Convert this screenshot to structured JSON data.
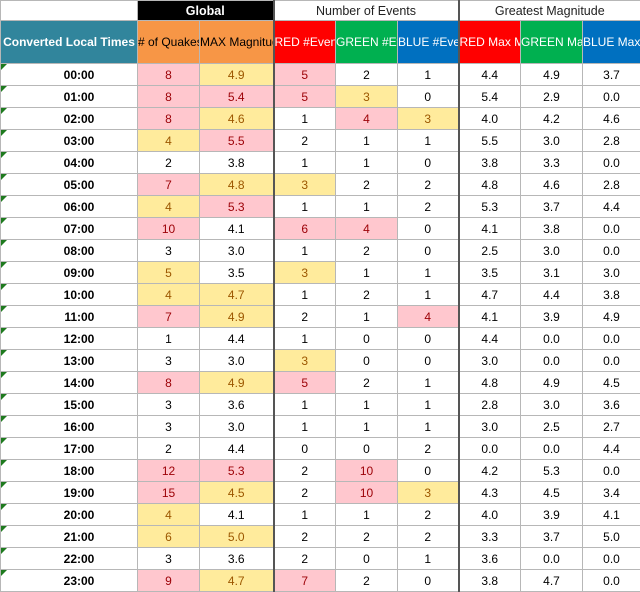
{
  "band": {
    "global": "Global",
    "events": "Number of Events",
    "magnitude": "Greatest Magnitude"
  },
  "headers": {
    "converted_local_times": "Converted Local Times",
    "quakes": "# of Quakes",
    "max_magnitude": "MAX Magnitude",
    "red_events": "RED #Events",
    "green_events": "GREEN #Events",
    "blue_events": "BLUE #Events",
    "red_max": "RED Max Mag",
    "green_max": "GREEN Max Mag",
    "blue_max": "BLUE Max Mag"
  },
  "highlight_colors": {
    "pink_fill": "#ffc7ce",
    "pink_text": "#9c0006",
    "yellow_fill": "#ffeb9c",
    "yellow_text": "#9c5700"
  },
  "rows": [
    {
      "hour": "00",
      "min": ":00",
      "quakes": "8",
      "max": "4.9",
      "red": "5",
      "green": "2",
      "blue": "1",
      "redmax": "4.4",
      "greenmax": "4.9",
      "bluemax": "3.7",
      "hl": {
        "quakes": "pink",
        "max": "yellow",
        "red": "pink"
      }
    },
    {
      "hour": "01",
      "min": ":00",
      "quakes": "8",
      "max": "5.4",
      "red": "5",
      "green": "3",
      "blue": "0",
      "redmax": "5.4",
      "greenmax": "2.9",
      "bluemax": "0.0",
      "hl": {
        "quakes": "pink",
        "max": "pink",
        "red": "pink",
        "green": "yellow"
      }
    },
    {
      "hour": "02",
      "min": ":00",
      "quakes": "8",
      "max": "4.6",
      "red": "1",
      "green": "4",
      "blue": "3",
      "redmax": "4.0",
      "greenmax": "4.2",
      "bluemax": "4.6",
      "hl": {
        "quakes": "pink",
        "max": "yellow",
        "green": "pink",
        "blue": "yellow"
      }
    },
    {
      "hour": "03",
      "min": ":00",
      "quakes": "4",
      "max": "5.5",
      "red": "2",
      "green": "1",
      "blue": "1",
      "redmax": "5.5",
      "greenmax": "3.0",
      "bluemax": "2.8",
      "hl": {
        "quakes": "yellow",
        "max": "pink"
      }
    },
    {
      "hour": "04",
      "min": ":00",
      "quakes": "2",
      "max": "3.8",
      "red": "1",
      "green": "1",
      "blue": "0",
      "redmax": "3.8",
      "greenmax": "3.3",
      "bluemax": "0.0",
      "hl": {}
    },
    {
      "hour": "05",
      "min": ":00",
      "quakes": "7",
      "max": "4.8",
      "red": "3",
      "green": "2",
      "blue": "2",
      "redmax": "4.8",
      "greenmax": "4.6",
      "bluemax": "2.8",
      "hl": {
        "quakes": "pink",
        "max": "yellow",
        "red": "yellow"
      }
    },
    {
      "hour": "06",
      "min": ":00",
      "quakes": "4",
      "max": "5.3",
      "red": "1",
      "green": "1",
      "blue": "2",
      "redmax": "5.3",
      "greenmax": "3.7",
      "bluemax": "4.4",
      "hl": {
        "quakes": "yellow",
        "max": "pink"
      }
    },
    {
      "hour": "07",
      "min": ":00",
      "quakes": "10",
      "max": "4.1",
      "red": "6",
      "green": "4",
      "blue": "0",
      "redmax": "4.1",
      "greenmax": "3.8",
      "bluemax": "0.0",
      "hl": {
        "quakes": "pink",
        "red": "pink",
        "green": "pink"
      }
    },
    {
      "hour": "08",
      "min": ":00",
      "quakes": "3",
      "max": "3.0",
      "red": "1",
      "green": "2",
      "blue": "0",
      "redmax": "2.5",
      "greenmax": "3.0",
      "bluemax": "0.0",
      "hl": {}
    },
    {
      "hour": "09",
      "min": ":00",
      "quakes": "5",
      "max": "3.5",
      "red": "3",
      "green": "1",
      "blue": "1",
      "redmax": "3.5",
      "greenmax": "3.1",
      "bluemax": "3.0",
      "hl": {
        "quakes": "yellow",
        "red": "yellow"
      }
    },
    {
      "hour": "10",
      "min": ":00",
      "quakes": "4",
      "max": "4.7",
      "red": "1",
      "green": "2",
      "blue": "1",
      "redmax": "4.7",
      "greenmax": "4.4",
      "bluemax": "3.8",
      "hl": {
        "quakes": "yellow",
        "max": "yellow"
      }
    },
    {
      "hour": "11",
      "min": ":00",
      "quakes": "7",
      "max": "4.9",
      "red": "2",
      "green": "1",
      "blue": "4",
      "redmax": "4.1",
      "greenmax": "3.9",
      "bluemax": "4.9",
      "hl": {
        "quakes": "pink",
        "max": "yellow",
        "blue": "pink"
      }
    },
    {
      "hour": "12",
      "min": ":00",
      "quakes": "1",
      "max": "4.4",
      "red": "1",
      "green": "0",
      "blue": "0",
      "redmax": "4.4",
      "greenmax": "0.0",
      "bluemax": "0.0",
      "hl": {}
    },
    {
      "hour": "13",
      "min": ":00",
      "quakes": "3",
      "max": "3.0",
      "red": "3",
      "green": "0",
      "blue": "0",
      "redmax": "3.0",
      "greenmax": "0.0",
      "bluemax": "0.0",
      "hl": {
        "red": "yellow"
      }
    },
    {
      "hour": "14",
      "min": ":00",
      "quakes": "8",
      "max": "4.9",
      "red": "5",
      "green": "2",
      "blue": "1",
      "redmax": "4.8",
      "greenmax": "4.9",
      "bluemax": "4.5",
      "hl": {
        "quakes": "pink",
        "max": "yellow",
        "red": "pink"
      }
    },
    {
      "hour": "15",
      "min": ":00",
      "quakes": "3",
      "max": "3.6",
      "red": "1",
      "green": "1",
      "blue": "1",
      "redmax": "2.8",
      "greenmax": "3.0",
      "bluemax": "3.6",
      "hl": {}
    },
    {
      "hour": "16",
      "min": ":00",
      "quakes": "3",
      "max": "3.0",
      "red": "1",
      "green": "1",
      "blue": "1",
      "redmax": "3.0",
      "greenmax": "2.5",
      "bluemax": "2.7",
      "hl": {}
    },
    {
      "hour": "17",
      "min": ":00",
      "quakes": "2",
      "max": "4.4",
      "red": "0",
      "green": "0",
      "blue": "2",
      "redmax": "0.0",
      "greenmax": "0.0",
      "bluemax": "4.4",
      "hl": {}
    },
    {
      "hour": "18",
      "min": ":00",
      "quakes": "12",
      "max": "5.3",
      "red": "2",
      "green": "10",
      "blue": "0",
      "redmax": "4.2",
      "greenmax": "5.3",
      "bluemax": "0.0",
      "hl": {
        "quakes": "pink",
        "max": "pink",
        "green": "pink"
      }
    },
    {
      "hour": "19",
      "min": ":00",
      "quakes": "15",
      "max": "4.5",
      "red": "2",
      "green": "10",
      "blue": "3",
      "redmax": "4.3",
      "greenmax": "4.5",
      "bluemax": "3.4",
      "hl": {
        "quakes": "pink",
        "max": "yellow",
        "green": "pink",
        "blue": "yellow"
      }
    },
    {
      "hour": "20",
      "min": ":00",
      "quakes": "4",
      "max": "4.1",
      "red": "1",
      "green": "1",
      "blue": "2",
      "redmax": "4.0",
      "greenmax": "3.9",
      "bluemax": "4.1",
      "hl": {
        "quakes": "yellow"
      }
    },
    {
      "hour": "21",
      "min": ":00",
      "quakes": "6",
      "max": "5.0",
      "red": "2",
      "green": "2",
      "blue": "2",
      "redmax": "3.3",
      "greenmax": "3.7",
      "bluemax": "5.0",
      "hl": {
        "quakes": "yellow",
        "max": "yellow"
      }
    },
    {
      "hour": "22",
      "min": ":00",
      "quakes": "3",
      "max": "3.6",
      "red": "2",
      "green": "0",
      "blue": "1",
      "redmax": "3.6",
      "greenmax": "0.0",
      "bluemax": "0.0",
      "hl": {}
    },
    {
      "hour": "23",
      "min": ":00",
      "quakes": "9",
      "max": "4.7",
      "red": "7",
      "green": "2",
      "blue": "0",
      "redmax": "3.8",
      "greenmax": "4.7",
      "bluemax": "0.0",
      "hl": {
        "quakes": "pink",
        "max": "yellow",
        "red": "pink"
      }
    }
  ]
}
